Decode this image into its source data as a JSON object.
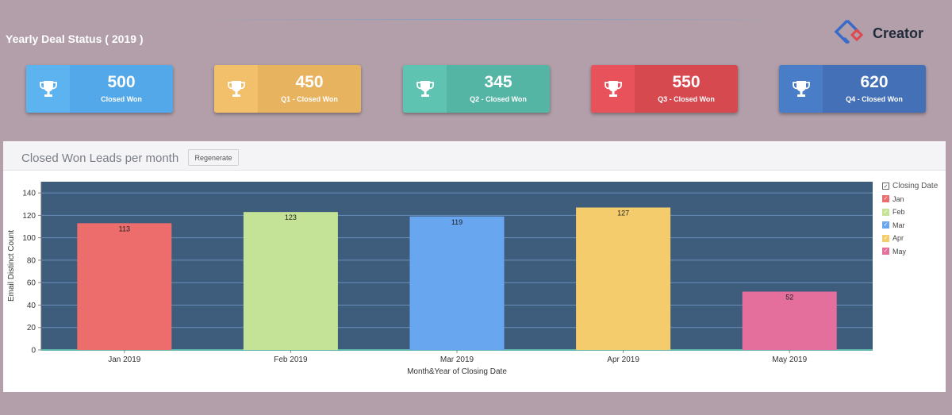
{
  "page_title": "Yearly Deal Status ( 2019 )",
  "brand": {
    "name": "Creator"
  },
  "kpis": [
    {
      "value": "500",
      "label": "Closed Won",
      "icon": "trophy-icon",
      "color": "#52a8e8",
      "icon_bg": "#5db3f0"
    },
    {
      "value": "450",
      "label": "Q1 - Closed Won",
      "icon": "trophy-icon",
      "color": "#e8b35e",
      "icon_bg": "#f2c06a"
    },
    {
      "value": "345",
      "label": "Q2 - Closed Won",
      "icon": "trophy-icon",
      "color": "#55b5a5",
      "icon_bg": "#5fc3b2"
    },
    {
      "value": "550",
      "label": "Q3 - Closed Won",
      "icon": "trophy-icon",
      "color": "#d6494f",
      "icon_bg": "#e8525a"
    },
    {
      "value": "620",
      "label": "Q4 - Closed Won",
      "icon": "trophy-icon",
      "color": "#4470b8",
      "icon_bg": "#4a7dc8"
    }
  ],
  "panel": {
    "title": "Closed Won Leads per month",
    "regenerate_label": "Regenerate",
    "legend_title": "Closing Date",
    "check_glyph": "✓"
  },
  "chart_data": {
    "type": "bar",
    "categories": [
      "Jan 2019",
      "Feb 2019",
      "Mar 2019",
      "Apr 2019",
      "May 2019"
    ],
    "values": [
      113,
      123,
      119,
      127,
      52
    ],
    "colors": [
      "#ec6d6c",
      "#c4e396",
      "#68a6f0",
      "#f4cc6b",
      "#e46e9c"
    ],
    "legend": [
      "Jan",
      "Feb",
      "Mar",
      "Apr",
      "May"
    ],
    "xlabel": "Month&Year of Closing Date",
    "ylabel": "Email Distinct Count",
    "ylim": [
      0,
      150
    ],
    "yticks": [
      0,
      20,
      40,
      60,
      80,
      100,
      120,
      140
    ],
    "grid": true,
    "legend_position": "right",
    "plot_background": "#3e5d7d"
  }
}
